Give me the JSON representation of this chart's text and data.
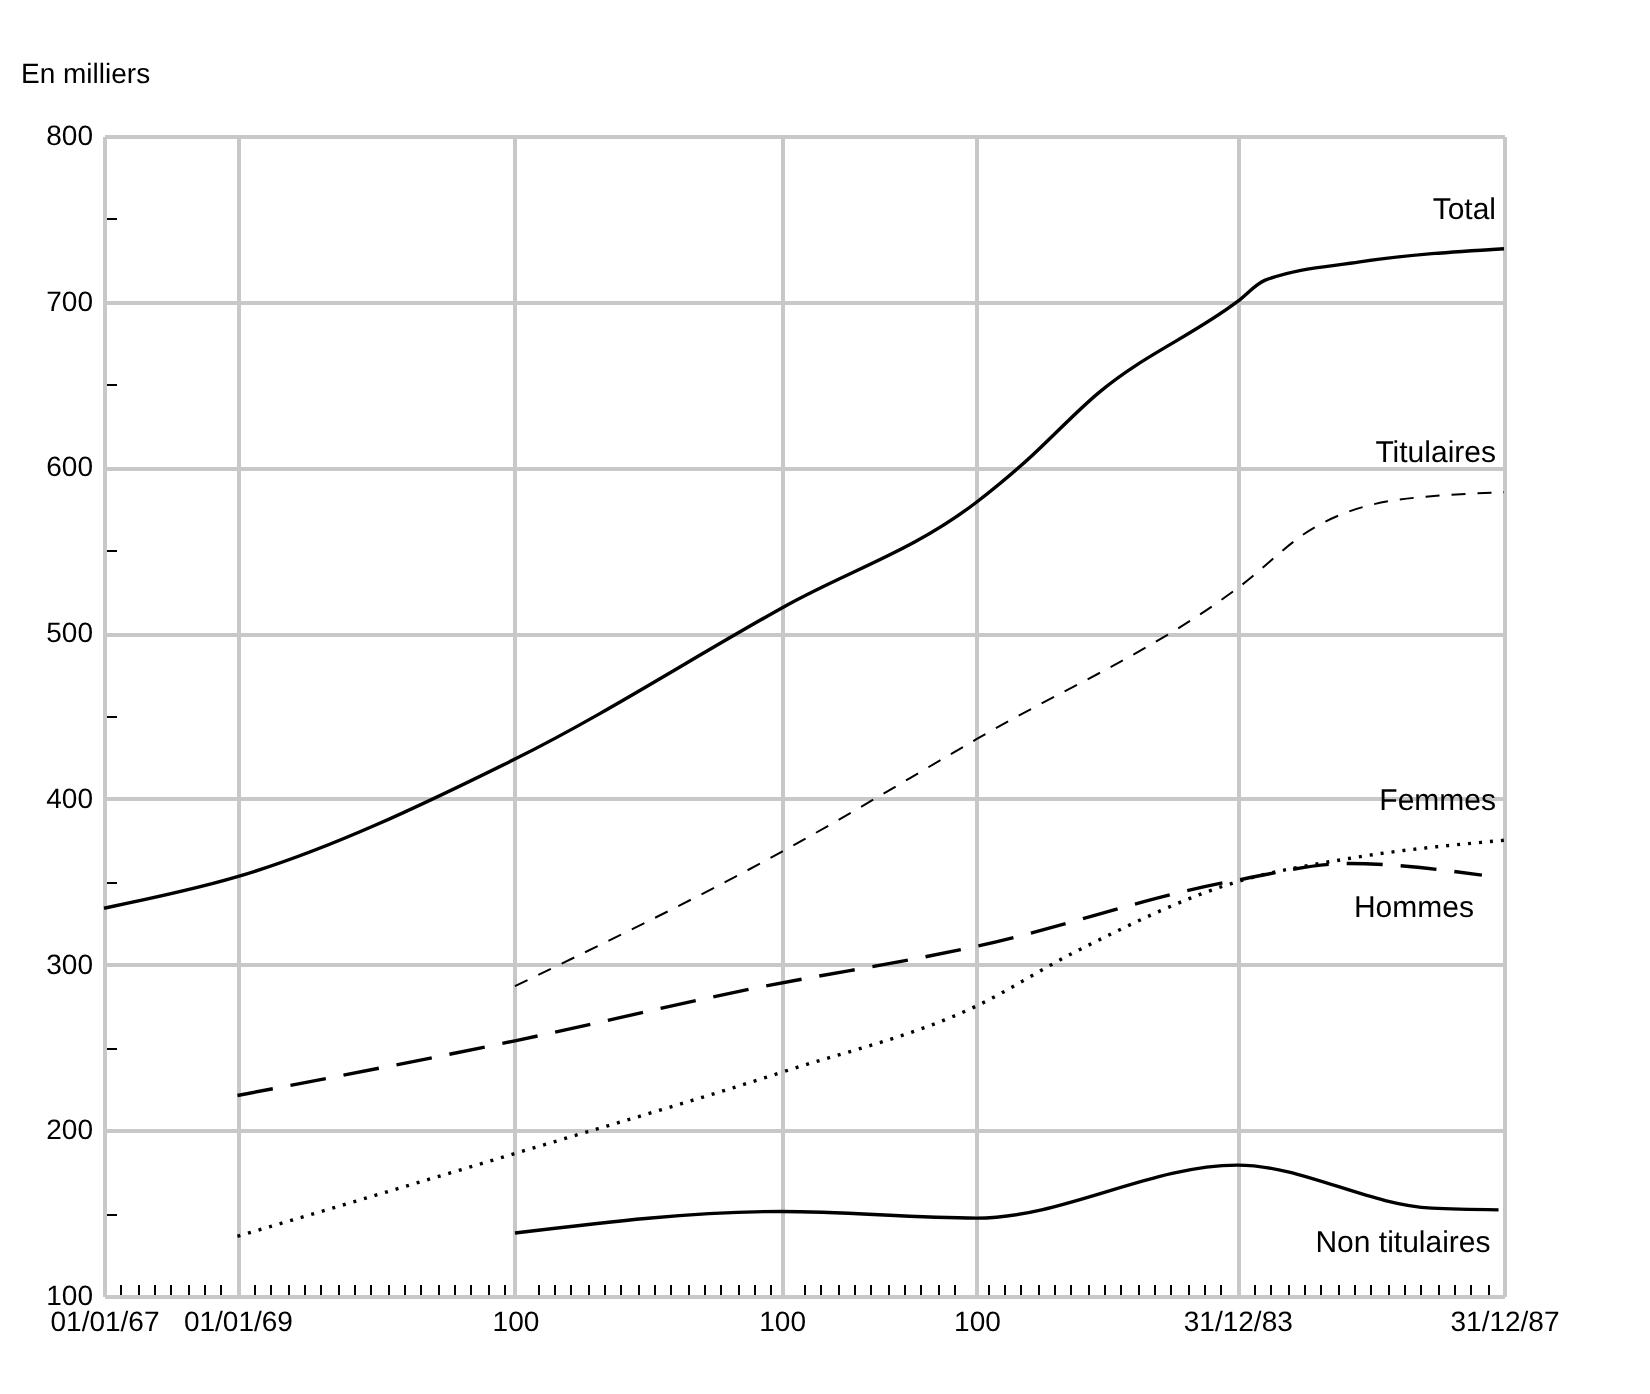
{
  "chart_data": {
    "type": "line",
    "ylabel": "En milliers",
    "xlim": [
      "1967-01-01",
      "1987-12-31"
    ],
    "ylim": [
      100,
      800
    ],
    "xticks": [
      {
        "value": "1967-01-01",
        "label": "01/01/67"
      },
      {
        "value": "1969-01-01",
        "label": "01/01/69"
      },
      {
        "value": "1973-03-01",
        "label": "100"
      },
      {
        "value": "1977-03-01",
        "label": "100"
      },
      {
        "value": "1980-02-01",
        "label": "100"
      },
      {
        "value": "1983-12-31",
        "label": "31/12/83"
      },
      {
        "value": "1987-12-31",
        "label": "31/12/87"
      },
      {
        "value": "1967-04-01",
        "label": null
      },
      {
        "value": "1967-07-01",
        "label": null
      },
      {
        "value": "1967-10-01",
        "label": null
      },
      {
        "value": "1968-01-01",
        "label": null
      },
      {
        "value": "1968-04-01",
        "label": null
      },
      {
        "value": "1968-07-01",
        "label": null
      },
      {
        "value": "1968-10-01",
        "label": null
      },
      {
        "value": "1969-04-01",
        "label": null
      },
      {
        "value": "1969-07-01",
        "label": null
      },
      {
        "value": "1969-10-01",
        "label": null
      },
      {
        "value": "1970-01-01",
        "label": null
      },
      {
        "value": "1970-04-01",
        "label": null
      },
      {
        "value": "1970-07-01",
        "label": null
      },
      {
        "value": "1970-10-01",
        "label": null
      },
      {
        "value": "1971-01-01",
        "label": null
      },
      {
        "value": "1971-04-01",
        "label": null
      },
      {
        "value": "1971-07-01",
        "label": null
      },
      {
        "value": "1971-10-01",
        "label": null
      },
      {
        "value": "1972-01-01",
        "label": null
      },
      {
        "value": "1972-04-01",
        "label": null
      },
      {
        "value": "1972-07-01",
        "label": null
      },
      {
        "value": "1972-10-01",
        "label": null
      },
      {
        "value": "1973-01-01",
        "label": null
      },
      {
        "value": "1973-07-01",
        "label": null
      },
      {
        "value": "1973-10-01",
        "label": null
      },
      {
        "value": "1974-01-01",
        "label": null
      },
      {
        "value": "1974-04-01",
        "label": null
      },
      {
        "value": "1974-07-01",
        "label": null
      },
      {
        "value": "1974-10-01",
        "label": null
      },
      {
        "value": "1975-01-01",
        "label": null
      },
      {
        "value": "1975-04-01",
        "label": null
      },
      {
        "value": "1975-07-01",
        "label": null
      },
      {
        "value": "1975-10-01",
        "label": null
      },
      {
        "value": "1976-01-01",
        "label": null
      },
      {
        "value": "1976-04-01",
        "label": null
      },
      {
        "value": "1976-07-01",
        "label": null
      },
      {
        "value": "1976-10-01",
        "label": null
      },
      {
        "value": "1977-01-01",
        "label": null
      },
      {
        "value": "1977-07-01",
        "label": null
      },
      {
        "value": "1977-10-01",
        "label": null
      },
      {
        "value": "1978-01-01",
        "label": null
      },
      {
        "value": "1978-04-01",
        "label": null
      },
      {
        "value": "1978-07-01",
        "label": null
      },
      {
        "value": "1978-10-01",
        "label": null
      },
      {
        "value": "1979-01-01",
        "label": null
      },
      {
        "value": "1979-04-01",
        "label": null
      },
      {
        "value": "1979-07-01",
        "label": null
      },
      {
        "value": "1979-10-01",
        "label": null
      },
      {
        "value": "1980-04-01",
        "label": null
      },
      {
        "value": "1980-07-01",
        "label": null
      },
      {
        "value": "1980-10-01",
        "label": null
      },
      {
        "value": "1981-01-01",
        "label": null
      },
      {
        "value": "1981-04-01",
        "label": null
      },
      {
        "value": "1981-07-01",
        "label": null
      },
      {
        "value": "1981-10-01",
        "label": null
      },
      {
        "value": "1982-01-01",
        "label": null
      },
      {
        "value": "1982-04-01",
        "label": null
      },
      {
        "value": "1982-07-01",
        "label": null
      },
      {
        "value": "1982-10-01",
        "label": null
      },
      {
        "value": "1983-01-01",
        "label": null
      },
      {
        "value": "1983-04-01",
        "label": null
      },
      {
        "value": "1983-07-01",
        "label": null
      },
      {
        "value": "1983-10-01",
        "label": null
      },
      {
        "value": "1984-04-01",
        "label": null
      },
      {
        "value": "1984-07-01",
        "label": null
      },
      {
        "value": "1984-10-01",
        "label": null
      },
      {
        "value": "1985-01-01",
        "label": null
      },
      {
        "value": "1985-04-01",
        "label": null
      },
      {
        "value": "1985-07-01",
        "label": null
      },
      {
        "value": "1985-10-01",
        "label": null
      },
      {
        "value": "1986-01-01",
        "label": null
      },
      {
        "value": "1986-04-01",
        "label": null
      },
      {
        "value": "1986-07-01",
        "label": null
      },
      {
        "value": "1986-10-01",
        "label": null
      },
      {
        "value": "1987-01-01",
        "label": null
      },
      {
        "value": "1987-04-01",
        "label": null
      },
      {
        "value": "1987-07-01",
        "label": null
      },
      {
        "value": "1987-10-01",
        "label": null
      }
    ],
    "yticks": [
      100,
      200,
      300,
      400,
      500,
      600,
      700,
      800,
      {
        "value": 150,
        "label": null
      },
      {
        "value": 250,
        "label": null
      },
      {
        "value": 350,
        "label": null
      },
      {
        "value": 450,
        "label": null
      },
      {
        "value": 550,
        "label": null
      },
      {
        "value": 650,
        "label": null
      },
      {
        "value": 750,
        "label": null
      }
    ],
    "grid": true,
    "series": [
      {
        "name": "Total",
        "color": "#000000",
        "line_style": "solid",
        "x": [
          "1967-01-01",
          "1969-01-01",
          "1973-03-01",
          "1977-04-01",
          "1980-02-01",
          "1980-10-01",
          "1981-12-01",
          "1983-12-31",
          "1984-06-01",
          "1985-11-01",
          "1987-12-31"
        ],
        "values": [
          334,
          353,
          424,
          517,
          579,
          601,
          645,
          700,
          713,
          724,
          732
        ]
      },
      {
        "name": "Titulaires",
        "color": "#000000",
        "line_style": "dashed",
        "x": [
          "1973-03-01",
          "1977-03-01",
          "1980-02-01",
          "1983-12-31",
          "1985-03-01",
          "1986-05-01",
          "1987-12-31"
        ],
        "values": [
          287,
          368,
          436,
          527,
          564,
          580,
          585
        ]
      },
      {
        "name": "Femmes",
        "color": "#000000",
        "line_style": "dotted",
        "x": [
          "1969-01-01",
          "1973-03-01",
          "1977-03-01",
          "1980-02-01",
          "1981-08-01",
          "1983-12-31",
          "1985-09-01",
          "1987-12-31"
        ],
        "values": [
          136,
          186,
          235,
          275,
          308,
          350,
          364,
          375
        ]
      },
      {
        "name": "Hommes",
        "color": "#000000",
        "line_style": "dashed",
        "x": [
          "1969-01-01",
          "1973-03-01",
          "1976-09-01",
          "1980-02-01",
          "1983-12-31",
          "1985-09-01",
          "1987-09-01"
        ],
        "values": [
          221,
          254,
          285,
          311,
          351,
          361,
          354
        ]
      },
      {
        "name": "Non titulaires",
        "color": "#000000",
        "line_style": "solid",
        "x": [
          "1973-03-01",
          "1977-03-01",
          "1980-02-01",
          "1983-12-31",
          "1986-12-01",
          "1987-12-01"
        ],
        "values": [
          138,
          151,
          147,
          179,
          153,
          152
        ]
      }
    ]
  }
}
